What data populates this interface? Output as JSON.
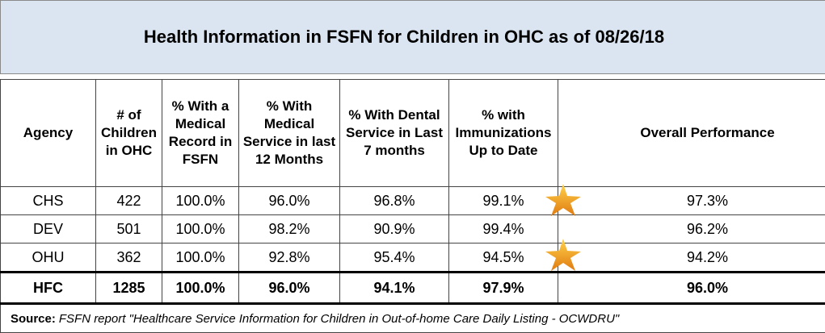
{
  "title": "Health Information in FSFN for Children in OHC as of 08/26/18",
  "table": {
    "headers": [
      "Agency",
      "# of Children in OHC",
      "% With a Medical Record in FSFN",
      "% With Medical Service in last 12 Months",
      "% With Dental Service in Last 7 months",
      "% with Immunizations Up to Date",
      "Overall Performance"
    ],
    "rows": [
      [
        "CHS",
        "422",
        "100.0%",
        "96.0%",
        "96.8%",
        "99.1%",
        "97.3%"
      ],
      [
        "DEV",
        "501",
        "100.0%",
        "98.2%",
        "90.9%",
        "99.4%",
        "96.2%"
      ],
      [
        "OHU",
        "362",
        "100.0%",
        "92.8%",
        "95.4%",
        "94.5%",
        "94.2%"
      ]
    ],
    "total": [
      "HFC",
      "1285",
      "100.0%",
      "96.0%",
      "94.1%",
      "97.9%",
      "96.0%"
    ]
  },
  "source": {
    "label": "Source:",
    "text": "FSFN report \"Healthcare Service Information for Children in Out-of-home Care  Daily Listing - OCWDRU\""
  }
}
